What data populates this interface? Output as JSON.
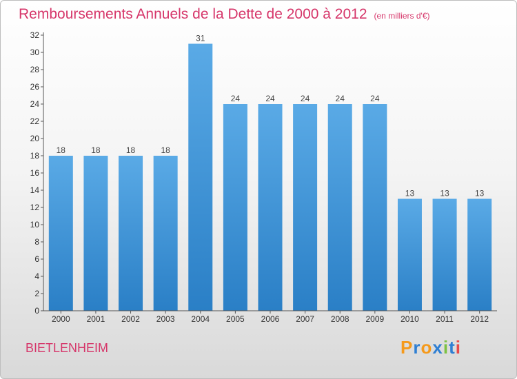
{
  "header": {
    "title": "Remboursements Annuels de la Dette de 2000 à 2012",
    "unit": "(en milliers d'€)"
  },
  "footer": {
    "place": "BIETLENHEIM",
    "logo": "Proxiti"
  },
  "colors": {
    "title": "#d6366a",
    "bar_top": "#5aaae6",
    "bar_bottom": "#2a7fc6"
  },
  "chart_data": {
    "type": "bar",
    "title": "Remboursements Annuels de la Dette de 2000 à 2012",
    "xlabel": "",
    "ylabel": "",
    "categories": [
      "2000",
      "2001",
      "2002",
      "2003",
      "2004",
      "2005",
      "2006",
      "2007",
      "2008",
      "2009",
      "2010",
      "2011",
      "2012"
    ],
    "values": [
      18,
      18,
      18,
      18,
      31,
      24,
      24,
      24,
      24,
      24,
      13,
      13,
      13
    ],
    "ylim": [
      0,
      32
    ],
    "yticks": [
      0,
      2,
      4,
      6,
      8,
      10,
      12,
      14,
      16,
      18,
      20,
      22,
      24,
      26,
      28,
      30,
      32
    ],
    "grid": false,
    "legend": "none",
    "data_labels": true
  }
}
